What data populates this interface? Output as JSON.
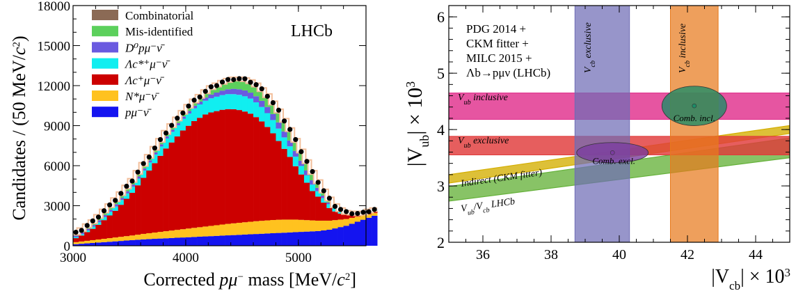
{
  "colors": {
    "combinatorial": "#8B6A55",
    "misid": "#5CD05C",
    "d0": "#6A5AE0",
    "lcstar": "#11EEF0",
    "lc": "#CC0000",
    "nstar": "#FFC21F",
    "pmu": "#1414F0",
    "fit_outline": "#F2BE9A",
    "ckm_band": "#D4AE00",
    "lhcb_band": "#66B23B",
    "vub_incl_band": "#E0308C",
    "vub_excl_band": "#E03A3A",
    "vcb_excl_band": "#6F6CB5",
    "vcb_incl_band": "#E77A1D",
    "incl_ellipse": "#1E8C68",
    "excl_ellipse": "#7B3DA0"
  },
  "chart_data": [
    {
      "type": "bar",
      "ylabel_main": "Candidates / (50 MeV/",
      "ylabel_sup": "2",
      "ylabel_end": ")",
      "xlabel_pre": "Corrected ",
      "xlabel_p": "p",
      "xlabel_mu": "μ",
      "xlabel_musup": "−",
      "xlabel_post": " mass [MeV/",
      "xlabel_c": "c",
      "xlabel_csup": "2",
      "xlabel_end": "]",
      "experiment_label": "LHCb",
      "xlim": [
        3000,
        5600
      ],
      "ylim": [
        0,
        18000
      ],
      "x_ticks": [
        3000,
        4000,
        5000
      ],
      "y_ticks": [
        0,
        3000,
        6000,
        9000,
        12000,
        15000,
        18000
      ],
      "x_ticklabels": [
        "3000",
        "4000",
        "5000"
      ],
      "y_ticklabels": [
        "0",
        "3000",
        "6000",
        "9000",
        "12000",
        "15000",
        "18000"
      ],
      "legend": [
        {
          "key": "combinatorial",
          "label": "Combinatorial",
          "italic": false
        },
        {
          "key": "misid",
          "label": "Mis-identified",
          "italic": false
        },
        {
          "key": "d0",
          "label": "D⁰pμ⁻ν̄",
          "italic": true
        },
        {
          "key": "lcstar",
          "label": "Λc*⁺μ⁻ν̄",
          "italic": true
        },
        {
          "key": "lc",
          "label": "Λc⁺μ⁻ν̄",
          "italic": true
        },
        {
          "key": "nstar",
          "label": "N*μ⁻ν̄",
          "italic": true
        },
        {
          "key": "pmu",
          "label": "pμ⁻ν̄",
          "italic": true
        }
      ],
      "bin_width": 50,
      "x_start": 3000,
      "stack_order": [
        "pmu",
        "nstar",
        "lc",
        "lcstar",
        "d0",
        "misid",
        "combinatorial"
      ],
      "totals": [
        950,
        1200,
        1500,
        1800,
        2200,
        2600,
        3000,
        3450,
        3900,
        4400,
        4900,
        5500,
        6100,
        6700,
        7300,
        7900,
        8500,
        9000,
        9500,
        10000,
        10450,
        10850,
        11200,
        11550,
        11850,
        12050,
        12250,
        12400,
        12500,
        12500,
        12450,
        12300,
        12050,
        11700,
        11250,
        10700,
        10100,
        9400,
        8700,
        7900,
        7100,
        6300,
        5500,
        4800,
        4100,
        3500,
        3000,
        2700,
        2500,
        2450,
        2400,
        2450,
        2600,
        2700
      ],
      "pmu": [
        120,
        150,
        180,
        210,
        240,
        270,
        300,
        330,
        360,
        390,
        420,
        450,
        480,
        500,
        520,
        540,
        560,
        580,
        600,
        620,
        640,
        660,
        680,
        700,
        720,
        740,
        760,
        780,
        800,
        820,
        840,
        860,
        880,
        900,
        920,
        940,
        960,
        980,
        1000,
        1020,
        1040,
        1060,
        1080,
        1100,
        1150,
        1200,
        1300,
        1400,
        1500,
        1650,
        1800,
        1950,
        2100,
        2250
      ],
      "nstar": [
        150,
        170,
        190,
        210,
        230,
        250,
        270,
        290,
        310,
        330,
        350,
        380,
        410,
        440,
        470,
        500,
        530,
        560,
        590,
        620,
        650,
        680,
        710,
        740,
        770,
        800,
        830,
        860,
        880,
        900,
        920,
        940,
        960,
        970,
        980,
        990,
        990,
        980,
        960,
        940,
        900,
        860,
        820,
        780,
        730,
        680,
        620,
        560,
        500,
        440,
        380,
        320,
        260,
        200
      ],
      "lc": [
        300,
        450,
        650,
        850,
        1100,
        1400,
        1700,
        2000,
        2400,
        2800,
        3200,
        3700,
        4200,
        4700,
        5200,
        5700,
        6200,
        6600,
        7000,
        7400,
        7700,
        8000,
        8200,
        8400,
        8500,
        8550,
        8600,
        8600,
        8550,
        8450,
        8300,
        8100,
        7800,
        7450,
        7000,
        6500,
        5900,
        5300,
        4700,
        4000,
        3400,
        2800,
        2200,
        1800,
        1350,
        950,
        650,
        450,
        330,
        280,
        240,
        200,
        180,
        150
      ],
      "lcstar": [
        80,
        100,
        130,
        160,
        190,
        230,
        270,
        320,
        360,
        400,
        450,
        500,
        550,
        600,
        650,
        700,
        750,
        800,
        840,
        880,
        920,
        960,
        1000,
        1030,
        1060,
        1080,
        1100,
        1120,
        1130,
        1140,
        1140,
        1130,
        1110,
        1080,
        1040,
        990,
        930,
        860,
        790,
        720,
        640,
        560,
        480,
        410,
        340,
        280,
        230,
        190,
        160,
        140,
        120,
        110,
        100,
        90
      ]
    },
    {
      "type": "overlay-bands",
      "ylabel": "|V",
      "ylabel_sub": "ub",
      "ylabel_end": "|  × 10",
      "ylabel_sup": "3",
      "xlabel": "|V",
      "xlabel_sub": "cb",
      "xlabel_end": "|  × 10",
      "xlabel_sup": "3",
      "xlim": [
        35,
        45
      ],
      "ylim": [
        2,
        6.2
      ],
      "x_ticks": [
        36,
        38,
        40,
        42,
        44
      ],
      "y_ticks": [
        2,
        3,
        4,
        5,
        6
      ],
      "x_ticklabels": [
        "36",
        "38",
        "40",
        "42",
        "44"
      ],
      "y_ticklabels": [
        "2",
        "3",
        "4",
        "5",
        "6"
      ],
      "info_lines": [
        "PDG 2014 +",
        "CKM fitter +",
        "MILC 2015 +",
        "Λb→pμν (LHCb)"
      ],
      "vcb_exclusive": {
        "range": [
          38.7,
          40.3
        ],
        "label": "V",
        "label_sub": "cb",
        "label_rest": " exclusive"
      },
      "vcb_inclusive": {
        "range": [
          41.5,
          42.9
        ],
        "label": "V",
        "label_sub": "cb",
        "label_rest": " inclusive"
      },
      "vub_inclusive": {
        "range": [
          4.18,
          4.65
        ],
        "label": "V",
        "label_sub": "ub",
        "label_rest": " inclusive"
      },
      "vub_exclusive": {
        "range": [
          3.55,
          3.88
        ],
        "label": "V",
        "label_sub": "ub",
        "label_rest": " exclusive"
      },
      "ckm_fitter_band": {
        "lower": [
          [
            35,
            3.05
          ],
          [
            45,
            3.93
          ]
        ],
        "upper": [
          [
            35,
            3.2
          ],
          [
            45,
            4.07
          ]
        ],
        "label": "Indirect (CKM fitter)"
      },
      "lhcb_band": {
        "lower": [
          [
            35,
            2.73
          ],
          [
            45,
            3.5
          ]
        ],
        "upper": [
          [
            35,
            2.99
          ],
          [
            45,
            3.85
          ]
        ],
        "label": "V",
        "label_sub": "ub",
        "label_mid": "/V",
        "label_sub2": "cb",
        "label_rest": " LHCb"
      },
      "comb_incl": {
        "center": [
          42.2,
          4.42
        ],
        "rx": 0.95,
        "ry": 0.35,
        "label": "Comb. incl."
      },
      "comb_excl": {
        "center": [
          39.8,
          3.59
        ],
        "rx": 1.05,
        "ry": 0.18,
        "label": "Comb. excl."
      }
    }
  ]
}
